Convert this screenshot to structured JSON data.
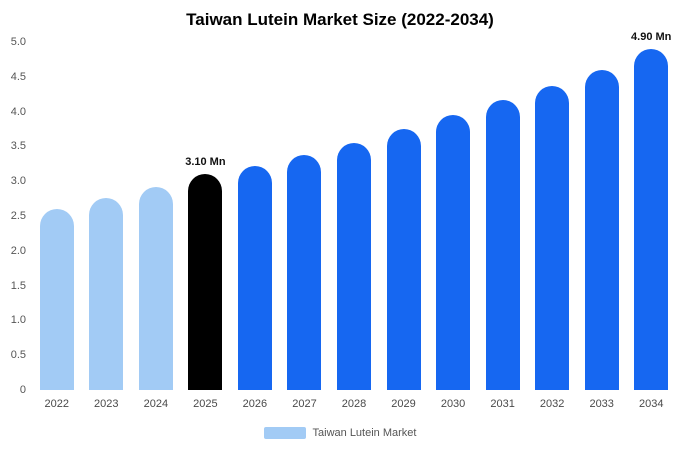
{
  "chart_data": {
    "type": "bar",
    "title": "Taiwan Lutein Market Size (2022-2034)",
    "categories": [
      "2022",
      "2023",
      "2024",
      "2025",
      "2026",
      "2027",
      "2028",
      "2029",
      "2030",
      "2031",
      "2032",
      "2033",
      "2034"
    ],
    "values": [
      2.6,
      2.76,
      2.92,
      3.1,
      3.22,
      3.38,
      3.55,
      3.75,
      3.95,
      4.16,
      4.37,
      4.6,
      4.9
    ],
    "unit": "Mn",
    "xlabel": "",
    "ylabel": "",
    "ylim": [
      0,
      5
    ],
    "yticks": [
      "5.0",
      "4.5",
      "4.0",
      "3.5",
      "3.0",
      "2.5",
      "2.0",
      "1.5",
      "1.0",
      "0.5",
      "0"
    ],
    "grid": false,
    "annotations": [
      {
        "category": "2025",
        "text": "3.10 Mn"
      },
      {
        "category": "2034",
        "text": "4.90 Mn"
      }
    ],
    "bar_colors": {
      "light_blue": "#A2CBF5",
      "blue": "#1667F1",
      "black": "#000000"
    },
    "color_per_bar": [
      "light_blue",
      "light_blue",
      "light_blue",
      "black",
      "blue",
      "blue",
      "blue",
      "blue",
      "blue",
      "blue",
      "blue",
      "blue",
      "blue"
    ],
    "legend": {
      "label": "Taiwan Lutein Market",
      "position": "bottom",
      "swatch_color": "#A2CBF5"
    }
  }
}
